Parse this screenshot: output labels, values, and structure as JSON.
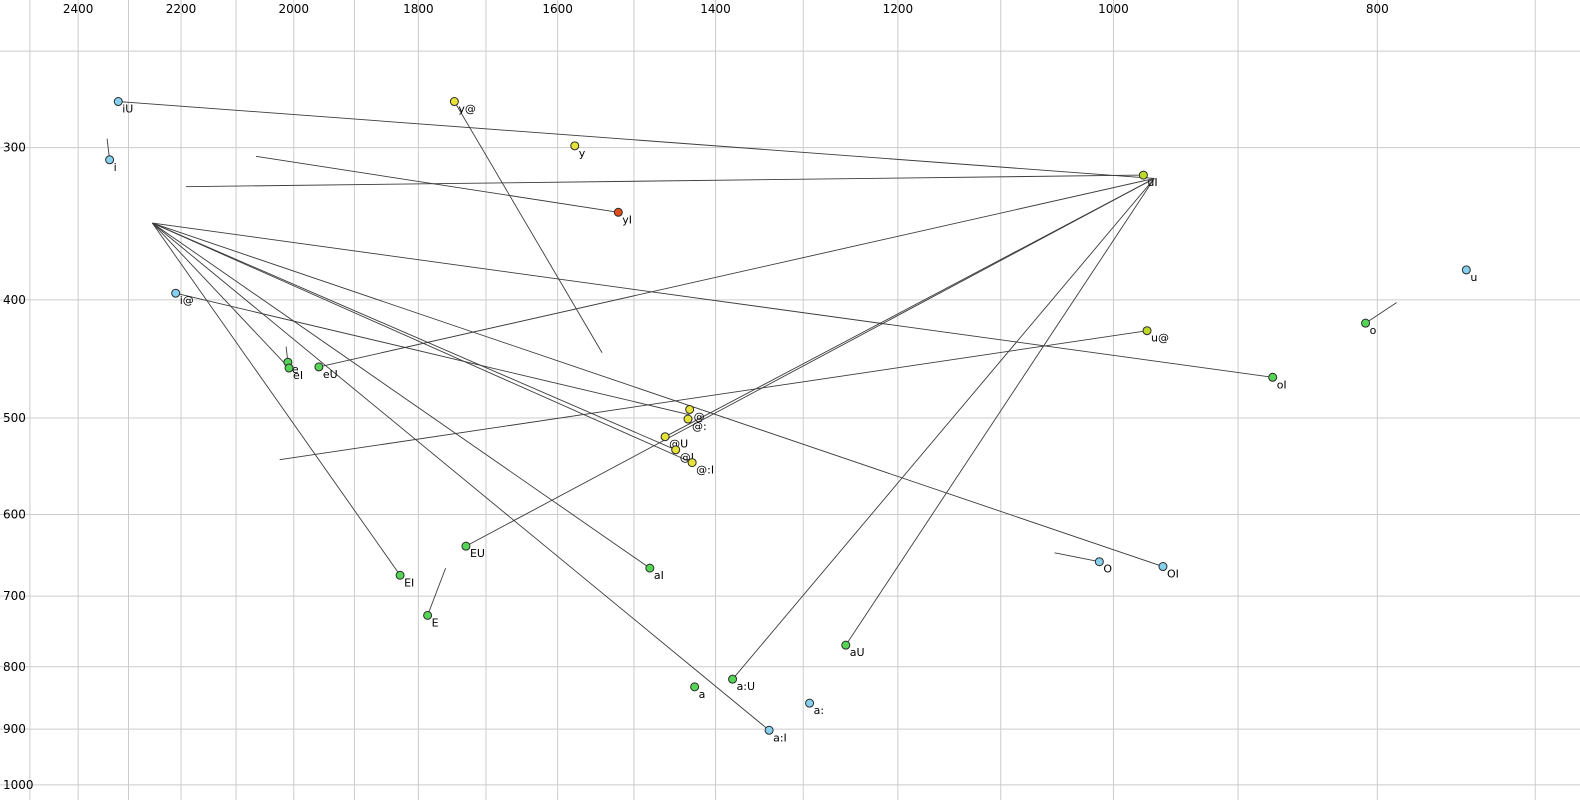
{
  "chart_data": {
    "type": "scatter",
    "title": "",
    "description": "Vowel formant plot (F2 horizontal reversed log scale, F1 vertical log scale) with monophthong/diphthong points and glide trajectory lines",
    "x_axis": {
      "ticks": [
        2400,
        2200,
        2000,
        1800,
        1600,
        1400,
        1200,
        1000,
        800
      ],
      "gridlines": [
        2500,
        2400,
        2300,
        2200,
        2100,
        2000,
        1900,
        1800,
        1700,
        1600,
        1500,
        1400,
        1300,
        1200,
        1100,
        1000,
        900,
        800,
        700
      ],
      "range": [
        2564,
        674
      ],
      "scale": "log-reversed"
    },
    "y_axis": {
      "ticks": [
        300,
        400,
        500,
        600,
        700,
        800,
        900,
        1000
      ],
      "gridlines": [
        250,
        300,
        400,
        500,
        600,
        700,
        800,
        900,
        1000
      ],
      "range": [
        227,
        1029
      ],
      "scale": "log"
    },
    "colors": {
      "blue": "#85d0ee",
      "yellow": "#e6e23a",
      "yellowgreen": "#bfd927",
      "green": "#55d455",
      "red": "#df4f1e",
      "line": "#3c3c3c",
      "grid": "#cccccc",
      "point_outline": "#2a2a2a",
      "text": "#000000"
    },
    "points": [
      {
        "label": "i",
        "f2": 2337,
        "f1": 307,
        "color": "blue",
        "glide": {
          "f2": 2342,
          "f1": 295
        }
      },
      {
        "label": "iU",
        "f2": 2320,
        "f1": 275,
        "color": "blue",
        "glide": {
          "f2": 966,
          "f1": 318
        }
      },
      {
        "label": "i@",
        "f2": 2210,
        "f1": 395,
        "color": "blue",
        "glide": {
          "f2": 1431,
          "f1": 497
        }
      },
      {
        "label": "e",
        "f2": 2010,
        "f1": 450,
        "color": "green",
        "glide": {
          "f2": 2013,
          "f1": 437
        }
      },
      {
        "label": "eI",
        "f2": 2008,
        "f1": 455,
        "color": "green",
        "glide": {
          "f2": 2254,
          "f1": 346
        }
      },
      {
        "label": "eU",
        "f2": 1958,
        "f1": 454,
        "color": "green",
        "glide": {
          "f2": 966,
          "f1": 318
        }
      },
      {
        "label": "EI",
        "f2": 1828,
        "f1": 673,
        "color": "green",
        "glide": {
          "f2": 2254,
          "f1": 346
        }
      },
      {
        "label": "E",
        "f2": 1786,
        "f1": 726,
        "color": "green",
        "glide": {
          "f2": 1759,
          "f1": 664
        }
      },
      {
        "label": "y@",
        "f2": 1746,
        "f1": 275,
        "color": "yellow",
        "glide": {
          "f2": 1541,
          "f1": 442
        }
      },
      {
        "label": "EU",
        "f2": 1729,
        "f1": 637,
        "color": "green",
        "glide": {
          "f2": 966,
          "f1": 318
        }
      },
      {
        "label": "y",
        "f2": 1577,
        "f1": 299,
        "color": "yellow",
        "glide": null
      },
      {
        "label": "yI",
        "f2": 1520,
        "f1": 339,
        "color": "red",
        "glide": {
          "f2": 2065,
          "f1": 305
        }
      },
      {
        "label": "aI",
        "f2": 1480,
        "f1": 664,
        "color": "green",
        "glide": {
          "f2": 2254,
          "f1": 346
        }
      },
      {
        "label": "@U",
        "f2": 1461,
        "f1": 518,
        "color": "yellow",
        "glide": {
          "f2": 966,
          "f1": 318
        }
      },
      {
        "label": "@I",
        "f2": 1448,
        "f1": 531,
        "color": "yellow",
        "glide": {
          "f2": 2254,
          "f1": 346
        }
      },
      {
        "label": "@",
        "f2": 1431,
        "f1": 492,
        "color": "yellow",
        "glide": null
      },
      {
        "label": "@:",
        "f2": 1433,
        "f1": 501,
        "color": "yellow",
        "glide": null
      },
      {
        "label": "@:I",
        "f2": 1428,
        "f1": 544,
        "color": "yellow",
        "glide": {
          "f2": 2254,
          "f1": 346
        }
      },
      {
        "label": "a",
        "f2": 1425,
        "f1": 831,
        "color": "green",
        "glide": null
      },
      {
        "label": "a:U",
        "f2": 1380,
        "f1": 819,
        "color": "green",
        "glide": {
          "f2": 966,
          "f1": 318
        }
      },
      {
        "label": "a:I",
        "f2": 1338,
        "f1": 902,
        "color": "blue",
        "glide": {
          "f2": 2254,
          "f1": 346
        }
      },
      {
        "label": "a:",
        "f2": 1293,
        "f1": 857,
        "color": "blue",
        "glide": null
      },
      {
        "label": "aU",
        "f2": 1254,
        "f1": 768,
        "color": "green",
        "glide": {
          "f2": 966,
          "f1": 318
        }
      },
      {
        "label": "O",
        "f2": 1012,
        "f1": 656,
        "color": "blue",
        "glide": {
          "f2": 1051,
          "f1": 645
        }
      },
      {
        "label": "OI",
        "f2": 959,
        "f1": 662,
        "color": "blue",
        "glide": {
          "f2": 2254,
          "f1": 346
        }
      },
      {
        "label": "uI",
        "f2": 975,
        "f1": 316,
        "color": "yellowgreen",
        "glide": {
          "f2": 2191,
          "f1": 323
        }
      },
      {
        "label": "u@",
        "f2": 972,
        "f1": 424,
        "color": "yellowgreen",
        "glide": {
          "f2": 2024,
          "f1": 541
        }
      },
      {
        "label": "oI",
        "f2": 874,
        "f1": 463,
        "color": "green",
        "glide": {
          "f2": 2254,
          "f1": 346
        }
      },
      {
        "label": "o",
        "f2": 808,
        "f1": 418,
        "color": "green",
        "glide": {
          "f2": 787,
          "f1": 402
        }
      },
      {
        "label": "u",
        "f2": 742,
        "f1": 378,
        "color": "blue",
        "glide": null
      }
    ]
  }
}
